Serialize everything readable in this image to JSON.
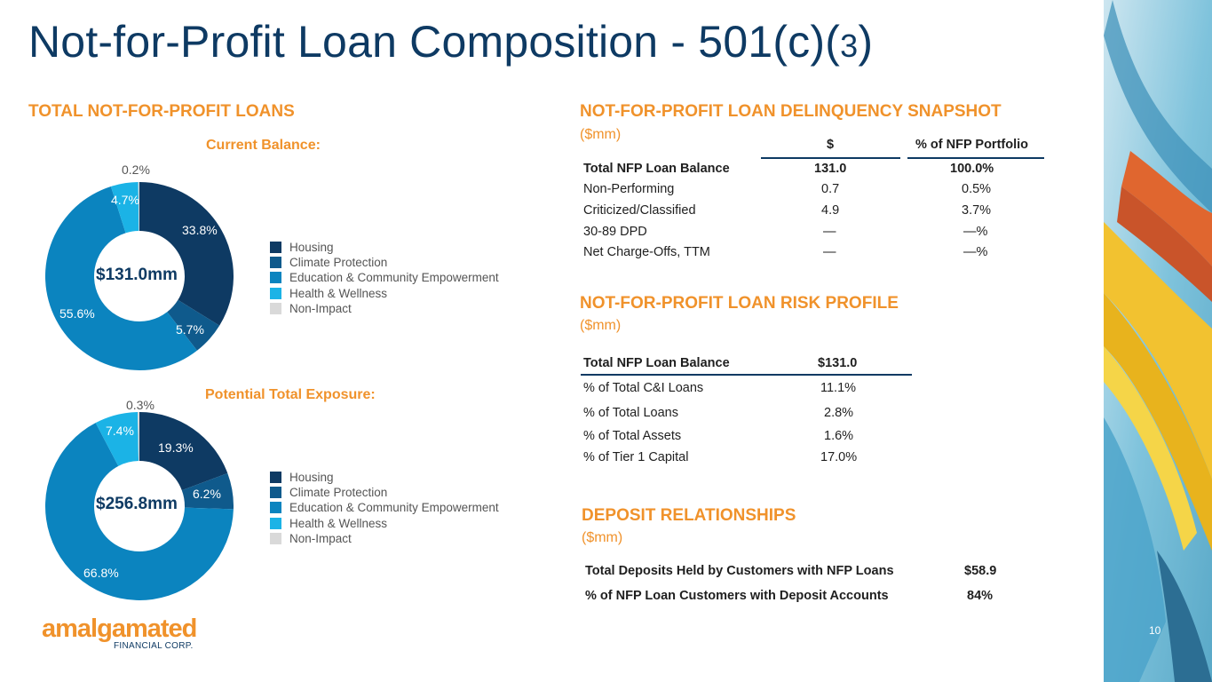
{
  "title_main": "Not-for-Profit Loan Composition - 501(c)(",
  "title_num": "3",
  "title_close": ")",
  "left": {
    "section_title": "TOTAL NOT-FOR-PROFIT LOANS",
    "chart1": {
      "subtitle": "Current Balance:",
      "center": "$131.0mm",
      "labels": {
        "housing": "33.8%",
        "climate": "5.7%",
        "education": "55.6%",
        "health": "4.7%",
        "nonimpact": "0.2%"
      }
    },
    "chart2": {
      "subtitle": "Potential Total Exposure:",
      "center": "$256.8mm",
      "labels": {
        "housing": "19.3%",
        "climate": "6.2%",
        "education": "66.8%",
        "health": "7.4%",
        "nonimpact": "0.3%"
      }
    },
    "legend": [
      "Housing",
      "Climate Protection",
      "Education & Community Empowerment",
      "Health & Wellness",
      "Non-Impact"
    ]
  },
  "colors": {
    "housing": "#0e3a63",
    "climate": "#0f5a8c",
    "education": "#0b84bf",
    "health": "#1bb3e6",
    "nonimpact": "#d9d9d9",
    "orange": "#f0922b"
  },
  "chart_data": [
    {
      "type": "pie",
      "title": "Current Balance:",
      "center_label": "$131.0mm",
      "categories": [
        "Housing",
        "Climate Protection",
        "Education & Community Empowerment",
        "Health & Wellness",
        "Non-Impact"
      ],
      "values": [
        33.8,
        5.7,
        55.6,
        4.7,
        0.2
      ],
      "legend": "right"
    },
    {
      "type": "pie",
      "title": "Potential Total Exposure:",
      "center_label": "$256.8mm",
      "categories": [
        "Housing",
        "Climate Protection",
        "Education & Community Empowerment",
        "Health & Wellness",
        "Non-Impact"
      ],
      "values": [
        19.3,
        6.2,
        66.8,
        7.4,
        0.3
      ],
      "legend": "right"
    }
  ],
  "delinquency": {
    "title": "NOT-FOR-PROFIT LOAN DELINQUENCY SNAPSHOT",
    "unit": "($mm)",
    "col1": "$",
    "col2": "% of NFP Portfolio",
    "rows": [
      {
        "label": "Total NFP Loan Balance",
        "v1": "131.0",
        "v2": "100.0%"
      },
      {
        "label": "Non-Performing",
        "v1": "0.7",
        "v2": "0.5%"
      },
      {
        "label": "Criticized/Classified",
        "v1": "4.9",
        "v2": "3.7%"
      },
      {
        "label": "30-89 DPD",
        "v1": "—",
        "v2": "—%"
      },
      {
        "label": "Net Charge-Offs, TTM",
        "v1": "—",
        "v2": "—%"
      }
    ]
  },
  "risk": {
    "title": "NOT-FOR-PROFIT LOAN RISK PROFILE",
    "unit": "($mm)",
    "rows": [
      {
        "label": "Total NFP Loan Balance",
        "v": "$131.0"
      },
      {
        "label": "% of Total C&I Loans",
        "v": "11.1%"
      },
      {
        "label": "% of Total Loans",
        "v": "2.8%"
      },
      {
        "label": "% of Total Assets",
        "v": "1.6%"
      },
      {
        "label": "% of Tier 1 Capital",
        "v": "17.0%"
      }
    ]
  },
  "deposits": {
    "title": "DEPOSIT RELATIONSHIPS",
    "unit": "($mm)",
    "rows": [
      {
        "label": "Total Deposits Held by Customers with NFP Loans",
        "v": "$58.9"
      },
      {
        "label": "% of NFP Loan Customers with Deposit Accounts",
        "v": "84%"
      }
    ]
  },
  "logo": {
    "name": "amalgamated",
    "sub": "FINANCIAL CORP."
  },
  "page_number": "10"
}
